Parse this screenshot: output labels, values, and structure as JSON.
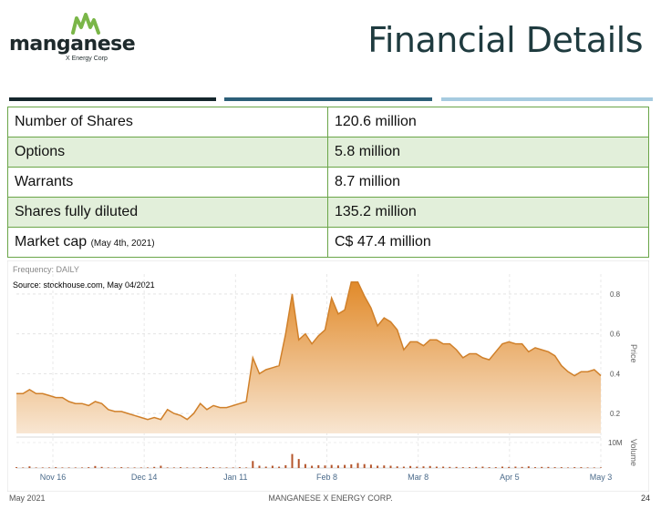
{
  "logo": {
    "name": "manganese",
    "subtitle": "X Energy Corp",
    "color": "#7ab648"
  },
  "page_title": "Financial Details",
  "accent_rules": [
    "#15262c",
    "#2c5f78",
    "#a6cbe0"
  ],
  "table": {
    "rows": [
      {
        "label": "Number of Shares",
        "note": "",
        "value": "120.6 million"
      },
      {
        "label": "Options",
        "note": "",
        "value": "5.8 million"
      },
      {
        "label": "Warrants",
        "note": "",
        "value": "8.7 million"
      },
      {
        "label": "Shares fully diluted",
        "note": "",
        "value": "135.2 million"
      },
      {
        "label": "Market cap",
        "note": "(May 4th, 2021)",
        "value": "C$ 47.4 million"
      }
    ]
  },
  "chart_data": {
    "type": "area",
    "frequency_label": "Frequency: DAILY",
    "source": "Source: stockhouse.com, May 04/2021",
    "x_ticks": [
      "Nov 16",
      "Dec 14",
      "Jan 11",
      "Feb 8",
      "Mar 8",
      "Apr 5",
      "May 3"
    ],
    "price_axis": {
      "label": "Price",
      "ticks": [
        "0.8",
        "0.6",
        "0.4",
        "0.2"
      ],
      "ylim": [
        0.1,
        0.9
      ]
    },
    "volume_axis": {
      "label": "Volume",
      "ticks": [
        "10M"
      ]
    },
    "colors": {
      "line": "#d0802a",
      "fill_top": "#e18a2a",
      "fill_bottom": "#f8e6d2",
      "volume": "#b4542a"
    },
    "price_series": [
      {
        "x": 0,
        "y": 0.3
      },
      {
        "x": 1,
        "y": 0.3
      },
      {
        "x": 2,
        "y": 0.32
      },
      {
        "x": 3,
        "y": 0.3
      },
      {
        "x": 4,
        "y": 0.3
      },
      {
        "x": 5,
        "y": 0.29
      },
      {
        "x": 6,
        "y": 0.28
      },
      {
        "x": 7,
        "y": 0.28
      },
      {
        "x": 8,
        "y": 0.26
      },
      {
        "x": 9,
        "y": 0.25
      },
      {
        "x": 10,
        "y": 0.25
      },
      {
        "x": 11,
        "y": 0.24
      },
      {
        "x": 12,
        "y": 0.26
      },
      {
        "x": 13,
        "y": 0.25
      },
      {
        "x": 14,
        "y": 0.22
      },
      {
        "x": 15,
        "y": 0.21
      },
      {
        "x": 16,
        "y": 0.21
      },
      {
        "x": 17,
        "y": 0.2
      },
      {
        "x": 18,
        "y": 0.19
      },
      {
        "x": 19,
        "y": 0.18
      },
      {
        "x": 20,
        "y": 0.17
      },
      {
        "x": 21,
        "y": 0.18
      },
      {
        "x": 22,
        "y": 0.17
      },
      {
        "x": 23,
        "y": 0.22
      },
      {
        "x": 24,
        "y": 0.2
      },
      {
        "x": 25,
        "y": 0.19
      },
      {
        "x": 26,
        "y": 0.17
      },
      {
        "x": 27,
        "y": 0.2
      },
      {
        "x": 28,
        "y": 0.25
      },
      {
        "x": 29,
        "y": 0.22
      },
      {
        "x": 30,
        "y": 0.24
      },
      {
        "x": 31,
        "y": 0.23
      },
      {
        "x": 32,
        "y": 0.23
      },
      {
        "x": 33,
        "y": 0.24
      },
      {
        "x": 34,
        "y": 0.25
      },
      {
        "x": 35,
        "y": 0.26
      },
      {
        "x": 36,
        "y": 0.48
      },
      {
        "x": 37,
        "y": 0.4
      },
      {
        "x": 38,
        "y": 0.42
      },
      {
        "x": 39,
        "y": 0.43
      },
      {
        "x": 40,
        "y": 0.44
      },
      {
        "x": 41,
        "y": 0.6
      },
      {
        "x": 42,
        "y": 0.8
      },
      {
        "x": 43,
        "y": 0.57
      },
      {
        "x": 44,
        "y": 0.6
      },
      {
        "x": 45,
        "y": 0.55
      },
      {
        "x": 46,
        "y": 0.59
      },
      {
        "x": 47,
        "y": 0.62
      },
      {
        "x": 48,
        "y": 0.78
      },
      {
        "x": 49,
        "y": 0.7
      },
      {
        "x": 50,
        "y": 0.72
      },
      {
        "x": 51,
        "y": 0.86
      },
      {
        "x": 52,
        "y": 0.86
      },
      {
        "x": 53,
        "y": 0.79
      },
      {
        "x": 54,
        "y": 0.73
      },
      {
        "x": 55,
        "y": 0.64
      },
      {
        "x": 56,
        "y": 0.68
      },
      {
        "x": 57,
        "y": 0.66
      },
      {
        "x": 58,
        "y": 0.62
      },
      {
        "x": 59,
        "y": 0.52
      },
      {
        "x": 60,
        "y": 0.56
      },
      {
        "x": 61,
        "y": 0.56
      },
      {
        "x": 62,
        "y": 0.54
      },
      {
        "x": 63,
        "y": 0.57
      },
      {
        "x": 64,
        "y": 0.57
      },
      {
        "x": 65,
        "y": 0.55
      },
      {
        "x": 66,
        "y": 0.55
      },
      {
        "x": 67,
        "y": 0.52
      },
      {
        "x": 68,
        "y": 0.48
      },
      {
        "x": 69,
        "y": 0.5
      },
      {
        "x": 70,
        "y": 0.5
      },
      {
        "x": 71,
        "y": 0.48
      },
      {
        "x": 72,
        "y": 0.47
      },
      {
        "x": 73,
        "y": 0.51
      },
      {
        "x": 74,
        "y": 0.55
      },
      {
        "x": 75,
        "y": 0.56
      },
      {
        "x": 76,
        "y": 0.55
      },
      {
        "x": 77,
        "y": 0.55
      },
      {
        "x": 78,
        "y": 0.51
      },
      {
        "x": 79,
        "y": 0.53
      },
      {
        "x": 80,
        "y": 0.52
      },
      {
        "x": 81,
        "y": 0.51
      },
      {
        "x": 82,
        "y": 0.49
      },
      {
        "x": 83,
        "y": 0.44
      },
      {
        "x": 84,
        "y": 0.41
      },
      {
        "x": 85,
        "y": 0.39
      },
      {
        "x": 86,
        "y": 0.41
      },
      {
        "x": 87,
        "y": 0.41
      },
      {
        "x": 88,
        "y": 0.42
      },
      {
        "x": 89,
        "y": 0.39
      }
    ],
    "volume_series": [
      0.3,
      0.2,
      0.6,
      0.2,
      0.2,
      0.2,
      0.3,
      0.2,
      0.2,
      0.2,
      0.2,
      0.3,
      0.7,
      0.4,
      0.2,
      0.2,
      0.3,
      0.2,
      0.2,
      0.2,
      0.2,
      0.4,
      0.8,
      0.2,
      0.2,
      0.3,
      0.2,
      0.2,
      0.3,
      0.3,
      0.3,
      0.2,
      0.2,
      0.2,
      0.3,
      0.2,
      2.5,
      0.8,
      0.5,
      0.8,
      0.5,
      1.0,
      5.0,
      3.2,
      1.4,
      0.8,
      1.0,
      0.9,
      1.1,
      0.9,
      1.1,
      1.3,
      1.8,
      1.4,
      1.2,
      0.8,
      0.9,
      0.8,
      0.6,
      0.5,
      0.7,
      0.5,
      0.6,
      0.7,
      0.5,
      0.5,
      0.4,
      0.4,
      0.3,
      0.3,
      0.4,
      0.5,
      0.3,
      0.3,
      0.5,
      0.4,
      0.5,
      0.4,
      0.6,
      0.3,
      0.4,
      0.4,
      0.3,
      0.3,
      0.2,
      0.3,
      0.3,
      0.2,
      0.2,
      0.2
    ]
  },
  "footer": {
    "date": "May 2021",
    "company": "MANGANESE X ENERGY CORP.",
    "page": "24"
  }
}
